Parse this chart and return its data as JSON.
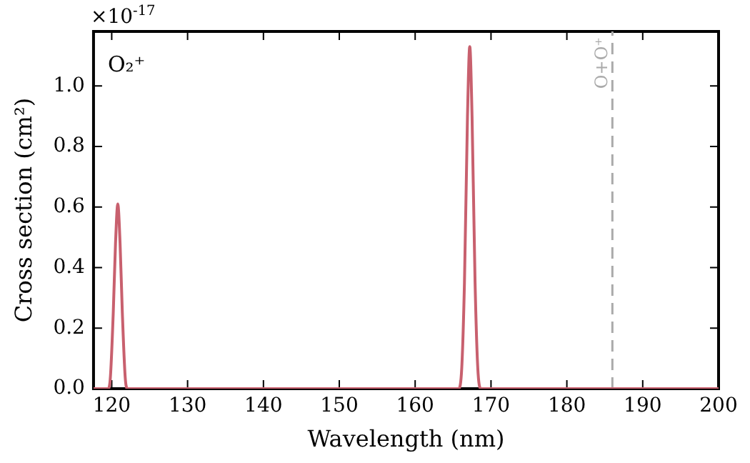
{
  "chart_data": {
    "type": "line",
    "title": "O₂⁺",
    "xlabel": "Wavelength (nm)",
    "ylabel": "Cross section (cm²)",
    "annotations": [
      "×10$^{-17}$"
    ],
    "x": [
      117.6,
      119.5,
      119.8,
      120.2,
      120.5,
      120.8,
      121.1,
      121.4,
      121.8,
      122.1,
      165.7,
      166.1,
      166.5,
      166.9,
      167.2,
      167.5,
      167.9,
      168.3,
      168.7,
      200
    ],
    "series": [
      {
        "color": "#c8606e",
        "values": [
          0,
          0,
          0.03,
          0.25,
          0.48,
          0.61,
          0.48,
          0.25,
          0.03,
          0,
          0,
          0.05,
          0.35,
          0.9,
          1.13,
          0.9,
          0.35,
          0.05,
          0,
          0
        ]
      }
    ],
    "xlim": [
      117.6,
      200
    ],
    "xticks": [
      120,
      130,
      140,
      150,
      160,
      170,
      180,
      190,
      200
    ],
    "ylim": [
      0,
      1.18
    ],
    "yticks": [
      {
        "value": 0,
        "label": "0.0"
      },
      {
        "value": 0.2,
        "label": "0.2"
      },
      {
        "value": 0.4,
        "label": "0.4"
      },
      {
        "value": 0.6,
        "label": "0.6"
      },
      {
        "value": 0.8,
        "label": "0.8"
      },
      {
        "value": 1,
        "label": "1.0"
      }
    ],
    "ref_lines": [
      {
        "axis": "x",
        "value": 186,
        "label": "O+O⁺",
        "color": "#aaaaaa",
        "line_style": "dashed"
      }
    ],
    "grid": false,
    "legend": false,
    "marker": "none",
    "line_style": "solid"
  }
}
